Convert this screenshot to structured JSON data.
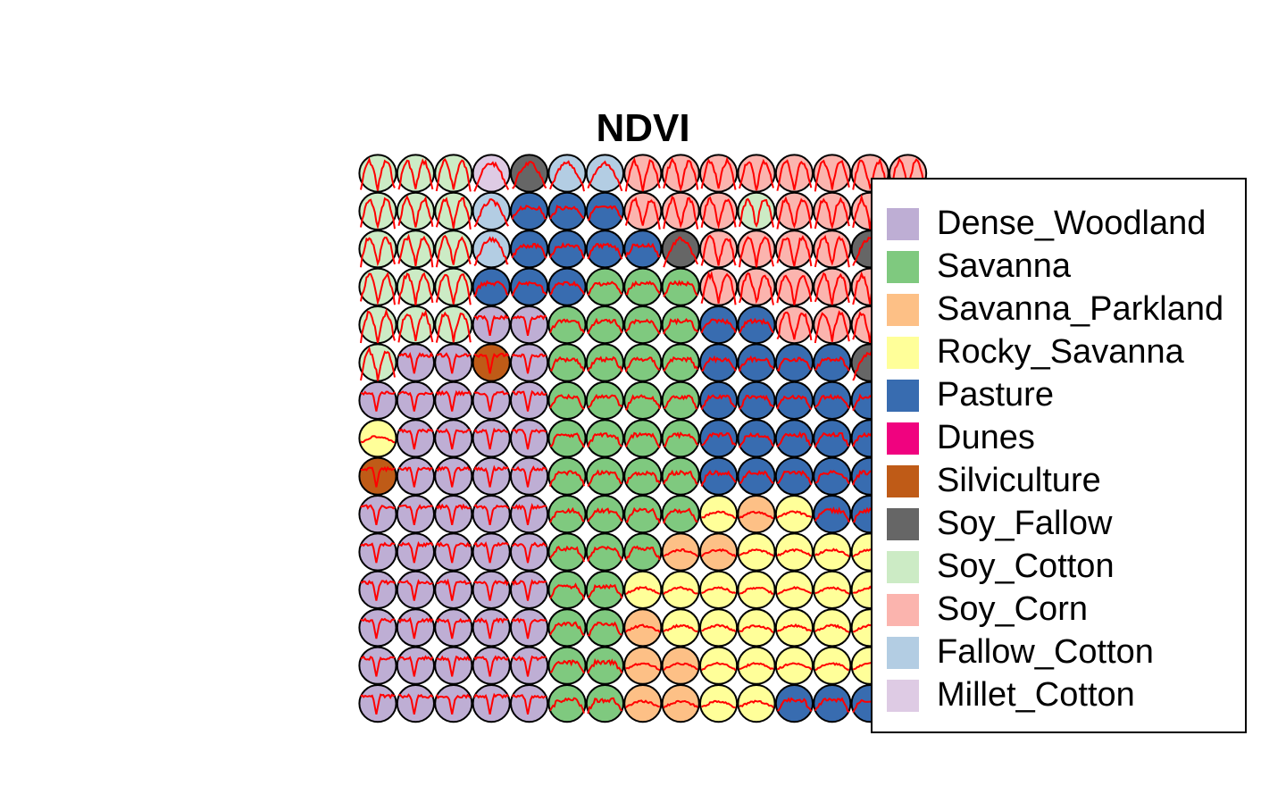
{
  "chart_data": {
    "type": "som-grid",
    "title": "NDVI",
    "grid": {
      "cols": 15,
      "rows": 15
    },
    "legend_position": "right",
    "series_line_color": "#ff0000",
    "classes": [
      {
        "name": "Dense_Woodland",
        "color": "#BEAED4"
      },
      {
        "name": "Savanna",
        "color": "#7FC97F"
      },
      {
        "name": "Savanna_Parkland",
        "color": "#FDC086"
      },
      {
        "name": "Rocky_Savanna",
        "color": "#FFFF99"
      },
      {
        "name": "Pasture",
        "color": "#386CB0"
      },
      {
        "name": "Dunes",
        "color": "#F0027F"
      },
      {
        "name": "Silviculture",
        "color": "#BF5B17"
      },
      {
        "name": "Soy_Fallow",
        "color": "#666666"
      },
      {
        "name": "Soy_Cotton",
        "color": "#CCEBC5"
      },
      {
        "name": "Soy_Corn",
        "color": "#FBB4AE"
      },
      {
        "name": "Fallow_Cotton",
        "color": "#B3CDE3"
      },
      {
        "name": "Millet_Cotton",
        "color": "#DECBE4"
      }
    ],
    "codes": {
      "Dense_Woodland": "W",
      "Savanna": "S",
      "Savanna_Parkland": "P",
      "Rocky_Savanna": "R",
      "Pasture": "B",
      "Silviculture": "V",
      "Soy_Fallow": "F",
      "Soy_Cotton": "C",
      "Soy_Corn": "N",
      "Fallow_Cotton": "L",
      "Millet_Cotton": "M"
    },
    "neuron_grid_top_to_bottom": [
      "CCCMFLLNNNNNNNN",
      "CCCLBBBNNNCNNNN",
      "CCCLBBBBFNNNNFN",
      "CCCBBBSSSNNNNNN",
      "CCCWWSSSSBBNNNN",
      "CWWVWSSSSBBBBFN",
      "WWWWWSSSSBBBBBB",
      "RWWWWSSSSBBBBBB",
      "VWWWWSSSSBBBBBB",
      "WWWWWSSSSRPRBBB",
      "WWWWWSSSPPRRRRR",
      "WWWWWSSRRRRRRRR",
      "WWWWWSSPRRRRRRR",
      "WWWWWSSPPRRRRRR",
      "WWWWWSSPPRRBBBB"
    ],
    "ndvi_pattern_types": {
      "C": "double",
      "N": "double",
      "M": "single",
      "F": "single",
      "L": "single",
      "B": "plateau",
      "S": "plateau",
      "R": "dome",
      "P": "dome",
      "W": "dip",
      "V": "dip"
    }
  }
}
